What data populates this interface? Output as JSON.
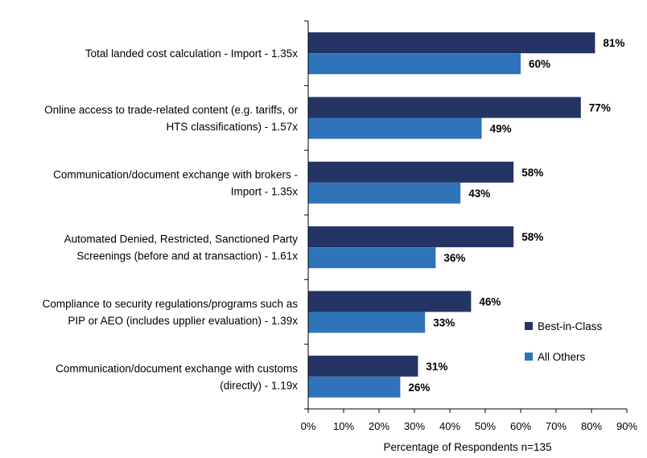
{
  "chart_data": {
    "type": "bar",
    "orientation": "horizontal",
    "categories": [
      "Total landed cost calculation - Import - 1.35x",
      "Online access to trade-related content (e.g. tariffs, or HTS classifications)  - 1.57x",
      "Communication/document exchange with brokers - Import - 1.35x",
      "Automated Denied, Restricted, Sanctioned Party Screenings (before and at transaction)  - 1.61x",
      "Compliance to security regulations/programs such as PIP or AEO (includes upplier evaluation) - 1.39x",
      "Communication/document exchange with customs (directly) - 1.19x"
    ],
    "category_lines": [
      [
        "Total landed cost calculation - Import - 1.35x"
      ],
      [
        "Online access to trade-related content (e.g. tariffs, or",
        "HTS classifications)  - 1.57x"
      ],
      [
        "Communication/document exchange with brokers -",
        "Import - 1.35x"
      ],
      [
        "Automated Denied, Restricted, Sanctioned Party",
        "Screenings (before and at transaction)  - 1.61x"
      ],
      [
        "Compliance to security regulations/programs such as",
        "PIP or AEO (includes upplier evaluation) - 1.39x"
      ],
      [
        "Communication/document exchange with customs",
        "(directly) - 1.19x"
      ]
    ],
    "series": [
      {
        "name": "Best-in-Class",
        "color": "#243464",
        "values": [
          81,
          77,
          58,
          58,
          46,
          31
        ]
      },
      {
        "name": "All Others",
        "color": "#2f74ba",
        "values": [
          60,
          49,
          43,
          36,
          33,
          26
        ]
      }
    ],
    "value_suffix": "%",
    "xlim": [
      0,
      90
    ],
    "xticks": [
      0,
      10,
      20,
      30,
      40,
      50,
      60,
      70,
      80,
      90
    ],
    "xtick_labels": [
      "0%",
      "10%",
      "20%",
      "30%",
      "40%",
      "50%",
      "60%",
      "70%",
      "80%",
      "90%"
    ],
    "xlabel": "Percentage of Respondents  n=135",
    "ylabel": "",
    "title": "",
    "grid": false,
    "legend": {
      "position": "right",
      "entries": [
        "Best-in-Class",
        "All Others"
      ]
    }
  }
}
